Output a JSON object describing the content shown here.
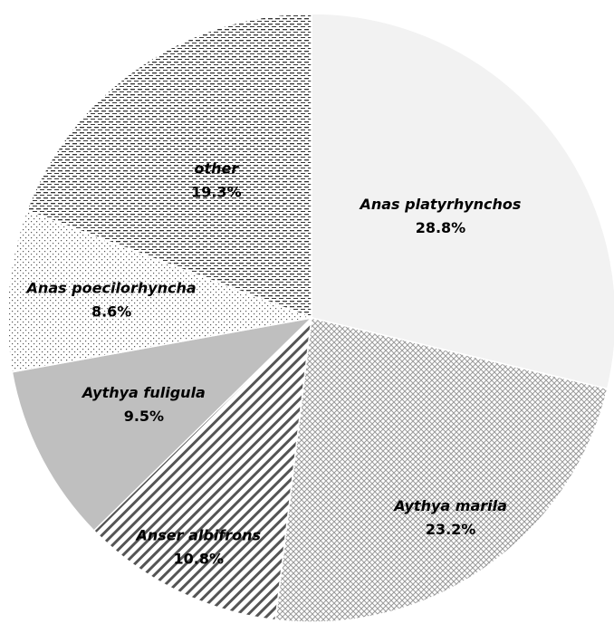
{
  "chart_data": {
    "type": "pie",
    "categories": [
      "Anas platyrhynchos",
      "Aythya marila",
      "Anser albifrons",
      "Aythya fuligula",
      "Anas poecilorhyncha",
      "other"
    ],
    "values": [
      28.8,
      23.2,
      10.8,
      9.5,
      8.6,
      19.3
    ],
    "value_labels": [
      "28.8%",
      "23.2%",
      "10.8%",
      "9.5%",
      "8.6%",
      "19.3%"
    ],
    "colors": [
      "#f2f2f2",
      "#9a9a9a",
      "#555555",
      "#bfbfbf",
      "#555555",
      "#333333"
    ]
  }
}
